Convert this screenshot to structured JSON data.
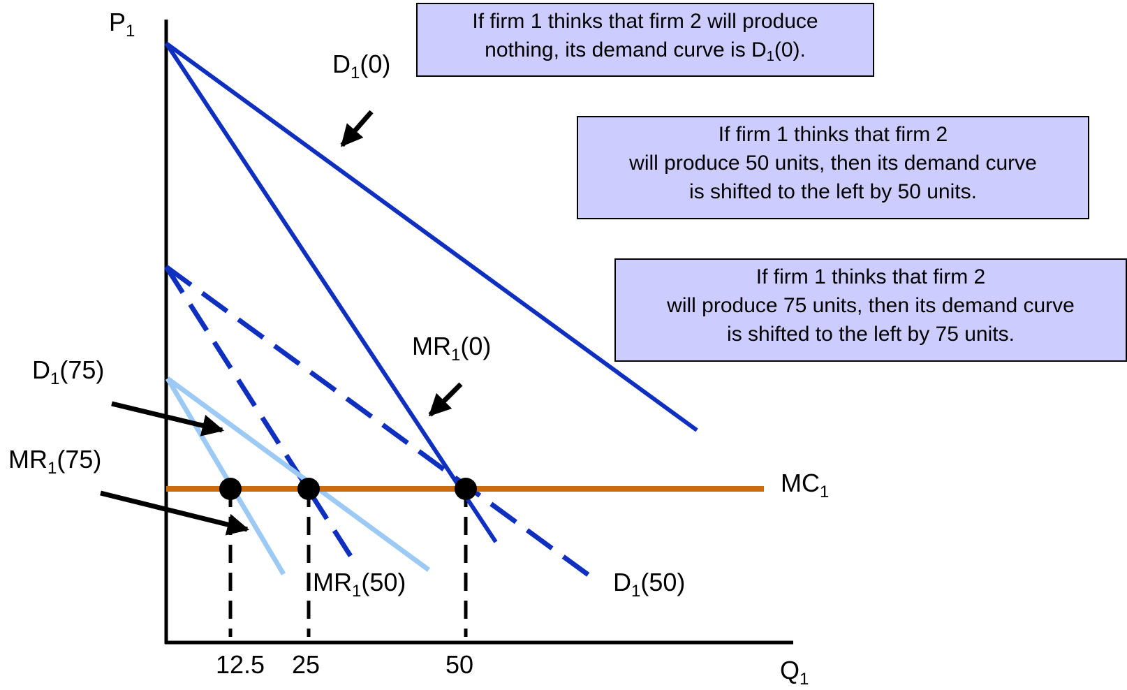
{
  "axes": {
    "y_label": {
      "main": "P",
      "sub": "1"
    },
    "x_label": {
      "main": "Q",
      "sub": "1"
    },
    "x_ticks": [
      "12.5",
      "25",
      "50"
    ]
  },
  "curves": {
    "d0": {
      "main": "D",
      "sub": "1",
      "tail": "(0)"
    },
    "mr0": {
      "main": "MR",
      "sub": "1",
      "tail": "(0)"
    },
    "d50": {
      "main": "D",
      "sub": "1",
      "tail": "(50)"
    },
    "mr50": {
      "main": "MR",
      "sub": "1",
      "tail": "(50)"
    },
    "d75": {
      "main": "D",
      "sub": "1",
      "tail": "(75)"
    },
    "mr75": {
      "main": "MR",
      "sub": "1",
      "tail": "(75)"
    },
    "mc": {
      "main": "MC",
      "sub": "1"
    }
  },
  "notes": {
    "n0": {
      "line1": "If firm 1 thinks that firm 2 will produce",
      "line2_pre": "nothing, its demand curve is D",
      "line2_sub": "1",
      "line2_post": "(0)."
    },
    "n50": {
      "line1": "If firm 1 thinks that firm 2",
      "line2": "will produce 50 units, then its demand curve",
      "line3": "is shifted to the left by 50 units."
    },
    "n75": {
      "line1": "If firm 1 thinks that firm 2",
      "line2": "will produce 75 units, then its demand curve",
      "line3": "is shifted to the left by 75 units."
    }
  },
  "colors": {
    "dark_blue": "#0f2fbf",
    "light_blue": "#9ccaf5",
    "mc_orange": "#cc6a0e",
    "note_fill": "#ccccff",
    "black": "#000000"
  }
}
